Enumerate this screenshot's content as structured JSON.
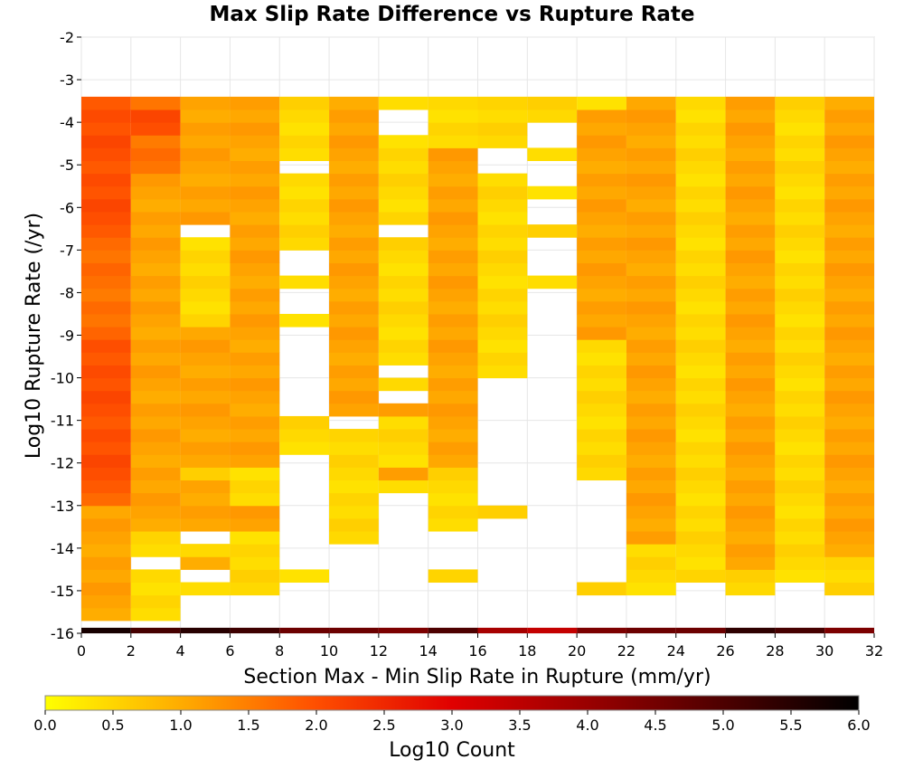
{
  "chart_data": {
    "type": "heatmap",
    "title": "Max Slip Rate Difference vs Rupture Rate",
    "xlabel": "Section Max - Min Slip Rate in Rupture (mm/yr)",
    "ylabel": "Log10 Rupture Rate (/yr)",
    "xlim": [
      0,
      32
    ],
    "ylim": [
      -16,
      -2
    ],
    "x_ticks": [
      "0",
      "2",
      "4",
      "6",
      "8",
      "10",
      "12",
      "14",
      "16",
      "18",
      "20",
      "22",
      "24",
      "26",
      "28",
      "30",
      "32"
    ],
    "y_ticks": [
      "-16",
      "-15",
      "-14",
      "-13",
      "-12",
      "-11",
      "-10",
      "-9",
      "-8",
      "-7",
      "-6",
      "-5",
      "-4",
      "-3",
      "-2"
    ],
    "bin_width_x": 2,
    "bin_height_y": 0.3,
    "colorbar": {
      "label": "Log10 Count",
      "range": [
        0,
        6
      ],
      "ticks": [
        "0.0",
        "0.5",
        "1.0",
        "1.5",
        "2.0",
        "2.5",
        "3.0",
        "3.5",
        "4.0",
        "4.5",
        "5.0",
        "5.5",
        "6.0"
      ],
      "colors": [
        "#ffff00",
        "#ffa500",
        "#ff5000",
        "#e00000",
        "#8b0000",
        "#000000"
      ]
    },
    "columns": [
      {
        "x": [
          0,
          2
        ],
        "cells": "2222222223444444444444333333334444444444444444333333322222"
      },
      {
        "x": [
          2,
          4
        ],
        "cells": "1111.11222222222222222222222222222233344333333322222222222"
      },
      {
        "x": [
          4,
          6
        ],
        "cells": "..1.21.22221222222222221111111.22222222222222222221111111111"
      },
      {
        "x": [
          6,
          8
        ],
        "cells": "..111112211122222222222222222222222222222222221111111111"
      },
      {
        "x": [
          8,
          10
        ],
        "cells": "...1.........111.......1..1..111111.1111111111"
      },
      {
        "x": [
          10,
          12
        ],
        "cells": "......111111111.222222222222222222222222222222221"
      },
      {
        "x": [
          12,
          14
        ],
        "cells": "..........1211112.1.1111111111.1111111..1.111111111"
      },
      {
        "x": [
          14,
          16
        ],
        "cells": "...1...11111222222222222222222222222211111111111"
      },
      {
        "x": [
          16,
          18
        ],
        "cells": "........1..........1111111111111111..1111111"
      },
      {
        "x": [
          18,
          20
        ],
        "cells": "..........................1...1..1..1..111"
      },
      {
        "x": [
          20,
          22
        ],
        "cells": "..1........11111111111222222222222222222111"
      },
      {
        "x": [
          22,
          24
        ],
        "cells": "..1111222222222222222222222222222222222222222222"
      },
      {
        "x": [
          24,
          26
        ],
        "cells": "...1111111111111111111111111111111111111111111"
      },
      {
        "x": [
          26,
          28
        ],
        "cells": "..11222222222222222222222222222222222222222222222222"
      },
      {
        "x": [
          28,
          30
        ],
        "cells": "...11111111111111111111111111111111111111111"
      },
      {
        "x": [
          30,
          32
        ],
        "cells": "..111222222222222222222222222222222222222222"
      }
    ],
    "bottom_row": {
      "y": -16,
      "values": [
        5.7,
        5.1,
        5.5,
        5.2,
        4.6,
        4.6,
        4.4,
        5.0,
        3.8,
        3.4,
        4.4,
        4.6,
        4.6,
        5.4,
        5.1,
        4.4
      ]
    }
  }
}
